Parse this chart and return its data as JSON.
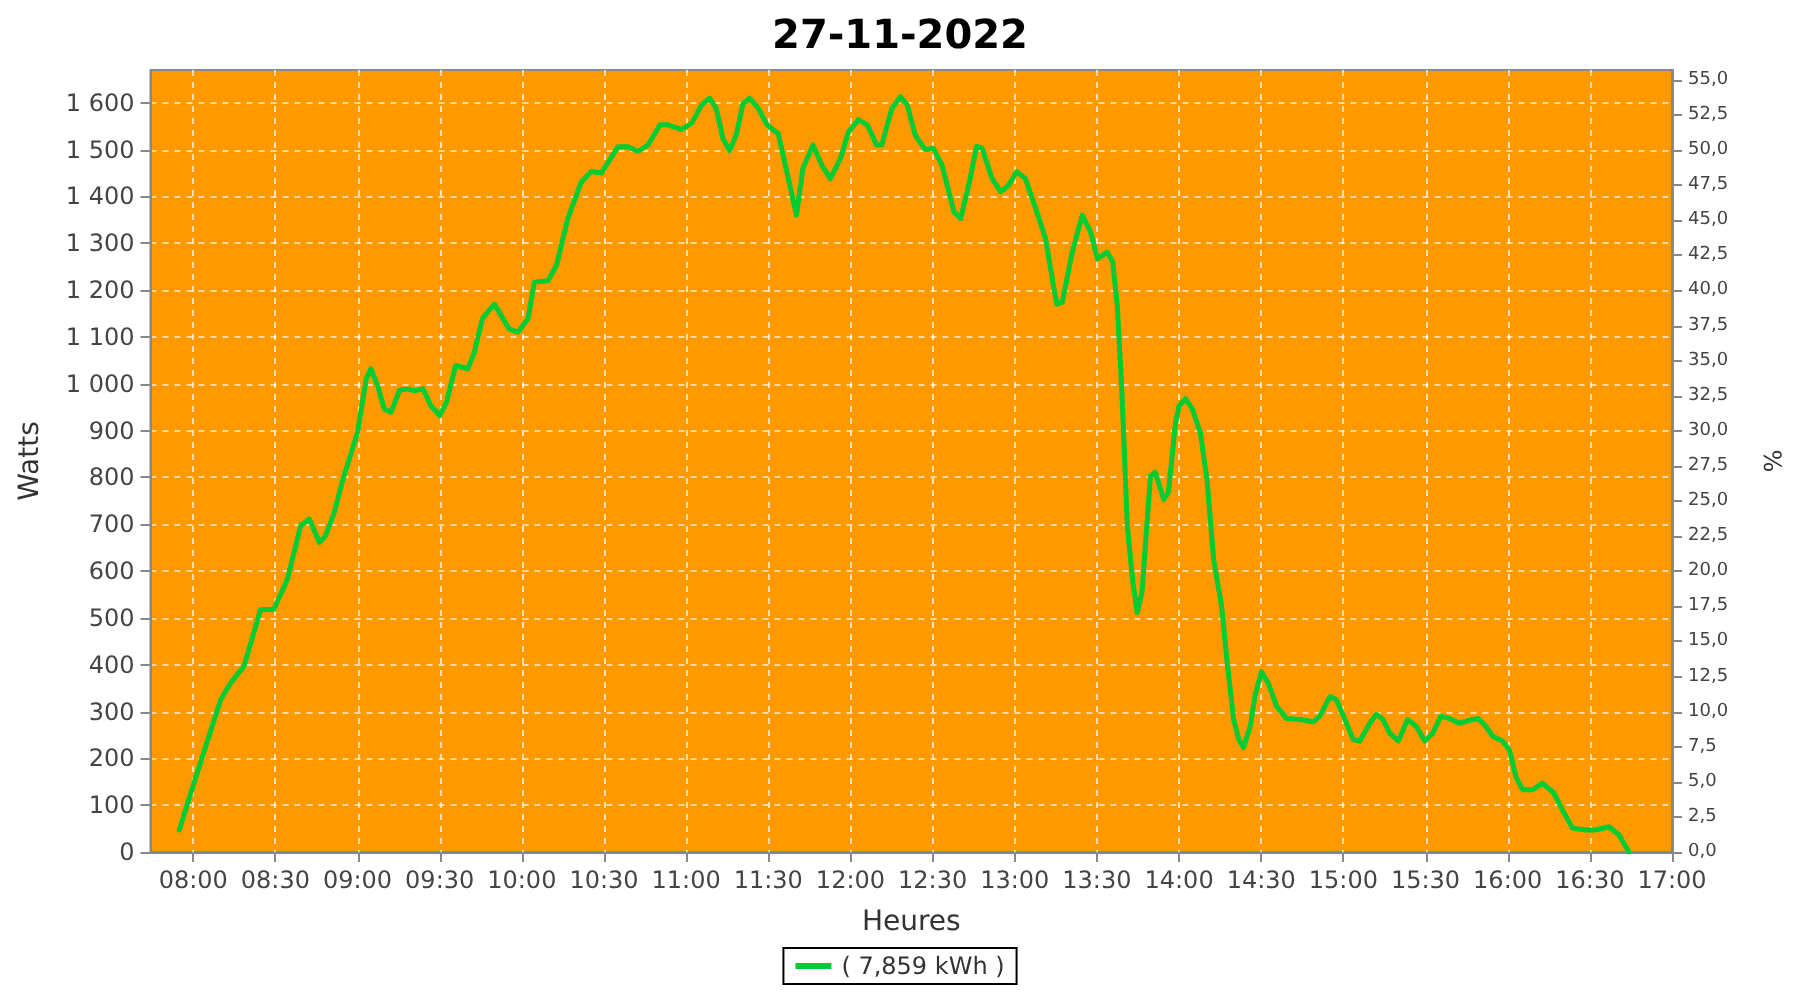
{
  "chart_data": {
    "type": "line",
    "title": "27-11-2022",
    "xlabel": "Heures",
    "ylabel": "Watts",
    "y2label": "%",
    "xlim": [
      7.74,
      17.0
    ],
    "xticks": [
      {
        "value": 8,
        "label": "08:00"
      },
      {
        "value": 8.5,
        "label": "08:30"
      },
      {
        "value": 9,
        "label": "09:00"
      },
      {
        "value": 9.5,
        "label": "09:30"
      },
      {
        "value": 10,
        "label": "10:00"
      },
      {
        "value": 10.5,
        "label": "10:30"
      },
      {
        "value": 11,
        "label": "11:00"
      },
      {
        "value": 11.5,
        "label": "11:30"
      },
      {
        "value": 12,
        "label": "12:00"
      },
      {
        "value": 12.5,
        "label": "12:30"
      },
      {
        "value": 13,
        "label": "13:00"
      },
      {
        "value": 13.5,
        "label": "13:30"
      },
      {
        "value": 14,
        "label": "14:00"
      },
      {
        "value": 14.5,
        "label": "14:30"
      },
      {
        "value": 15,
        "label": "15:00"
      },
      {
        "value": 15.5,
        "label": "15:30"
      },
      {
        "value": 16,
        "label": "16:00"
      },
      {
        "value": 16.5,
        "label": "16:30"
      },
      {
        "value": 17,
        "label": "17:00"
      }
    ],
    "ylim": [
      0,
      1670
    ],
    "yticks": [
      0,
      100,
      200,
      300,
      400,
      500,
      600,
      700,
      800,
      900,
      {
        "value": 1000,
        "label": "1 000"
      },
      {
        "value": 1100,
        "label": "1 100"
      },
      {
        "value": 1200,
        "label": "1 200"
      },
      {
        "value": 1300,
        "label": "1 300"
      },
      {
        "value": 1400,
        "label": "1 400"
      },
      {
        "value": 1500,
        "label": "1 500"
      },
      {
        "value": 1600,
        "label": "1 600"
      }
    ],
    "y2lim": [
      0,
      55.7
    ],
    "y2ticks": [
      {
        "value": 0,
        "label": "0,0"
      },
      {
        "value": 2.5,
        "label": "2,5"
      },
      {
        "value": 5,
        "label": "5,0"
      },
      {
        "value": 7.5,
        "label": "7,5"
      },
      {
        "value": 10,
        "label": "10,0"
      },
      {
        "value": 12.5,
        "label": "12,5"
      },
      {
        "value": 15,
        "label": "15,0"
      },
      {
        "value": 17.5,
        "label": "17,5"
      },
      {
        "value": 20,
        "label": "20,0"
      },
      {
        "value": 22.5,
        "label": "22,5"
      },
      {
        "value": 25,
        "label": "25,0"
      },
      {
        "value": 27.5,
        "label": "27,5"
      },
      {
        "value": 30,
        "label": "30,0"
      },
      {
        "value": 32.5,
        "label": "32,5"
      },
      {
        "value": 35,
        "label": "35,0"
      },
      {
        "value": 37.5,
        "label": "37,5"
      },
      {
        "value": 40,
        "label": "40,0"
      },
      {
        "value": 42.5,
        "label": "42,5"
      },
      {
        "value": 45,
        "label": "45,0"
      },
      {
        "value": 47.5,
        "label": "47,5"
      },
      {
        "value": 50,
        "label": "50,0"
      },
      {
        "value": 52.5,
        "label": "52,5"
      },
      {
        "value": 55,
        "label": "55,0"
      }
    ],
    "grid": true,
    "legend": "bottom",
    "marker": "none",
    "line_style": "solid",
    "series": [
      {
        "name": "( 7,859 kWh )",
        "color": "#00cc33",
        "x": [
          7.915,
          8.004,
          8.167,
          8.228,
          8.309,
          8.41,
          8.49,
          8.573,
          8.654,
          8.707,
          8.768,
          8.805,
          8.858,
          8.911,
          9.0,
          9.053,
          9.081,
          9.122,
          9.163,
          9.203,
          9.256,
          9.305,
          9.346,
          9.398,
          9.447,
          9.5,
          9.541,
          9.598,
          9.671,
          9.711,
          9.76,
          9.833,
          9.874,
          9.923,
          9.976,
          10.037,
          10.077,
          10.159,
          10.211,
          10.28,
          10.362,
          10.423,
          10.484,
          10.585,
          10.646,
          10.707,
          10.768,
          10.841,
          10.89,
          10.972,
          11.033,
          11.094,
          11.142,
          11.183,
          11.224,
          11.264,
          11.305,
          11.346,
          11.386,
          11.439,
          11.492,
          11.561,
          11.622,
          11.671,
          11.711,
          11.772,
          11.825,
          11.878,
          11.939,
          11.988,
          12.049,
          12.102,
          12.159,
          12.191,
          12.252,
          12.305,
          12.346,
          12.394,
          12.455,
          12.504,
          12.557,
          12.63,
          12.671,
          12.72,
          12.768,
          12.801,
          12.862,
          12.915,
          12.963,
          13.012,
          13.065,
          13.134,
          13.187,
          13.228,
          13.256,
          13.289,
          13.35,
          13.411,
          13.462,
          13.503,
          13.563,
          13.596,
          13.624,
          13.652,
          13.685,
          13.717,
          13.745,
          13.774,
          13.826,
          13.855,
          13.907,
          13.935,
          13.976,
          14.0,
          14.04,
          14.081,
          14.129,
          14.17,
          14.21,
          14.259,
          14.291,
          14.332,
          14.364,
          14.392,
          14.433,
          14.461,
          14.501,
          14.542,
          14.594,
          14.655,
          14.736,
          14.817,
          14.857,
          14.918,
          14.958,
          15.019,
          15.06,
          15.1,
          15.161,
          15.201,
          15.241,
          15.282,
          15.334,
          15.391,
          15.444,
          15.496,
          15.545,
          15.593,
          15.646,
          15.706,
          15.787,
          15.82,
          15.868,
          15.909,
          15.969,
          16.01,
          16.05,
          16.091,
          16.151,
          16.212,
          16.281,
          16.333,
          16.394,
          16.475,
          16.535,
          16.616,
          16.677,
          16.738
        ],
        "values": [
          47,
          147,
          325,
          361,
          397,
          518,
          518,
          582,
          697,
          711,
          661,
          675,
          725,
          796,
          896,
          1010,
          1032,
          996,
          946,
          939,
          986,
          989,
          985,
          989,
          953,
          932,
          960,
          1039,
          1032,
          1067,
          1139,
          1170,
          1146,
          1117,
          1110,
          1139,
          1217,
          1220,
          1253,
          1353,
          1431,
          1453,
          1450,
          1506,
          1506,
          1496,
          1510,
          1553,
          1553,
          1543,
          1556,
          1595,
          1610,
          1588,
          1524,
          1498,
          1531,
          1598,
          1610,
          1588,
          1553,
          1534,
          1438,
          1360,
          1460,
          1510,
          1467,
          1438,
          1481,
          1538,
          1564,
          1553,
          1510,
          1510,
          1588,
          1613,
          1595,
          1531,
          1500,
          1503,
          1467,
          1367,
          1353,
          1424,
          1507,
          1503,
          1438,
          1410,
          1424,
          1453,
          1438,
          1367,
          1310,
          1224,
          1170,
          1174,
          1281,
          1360,
          1324,
          1267,
          1281,
          1260,
          1167,
          982,
          696,
          582,
          511,
          554,
          803,
          811,
          753,
          768,
          910,
          953,
          968,
          946,
          896,
          796,
          625,
          525,
          411,
          283,
          240,
          223,
          268,
          332,
          385,
          361,
          311,
          285,
          283,
          278,
          290,
          332,
          325,
          275,
          240,
          237,
          275,
          294,
          283,
          254,
          237,
          283,
          268,
          237,
          254,
          290,
          285,
          275,
          283,
          285,
          268,
          247,
          237,
          218,
          161,
          133,
          133,
          147,
          126,
          90,
          51,
          47,
          47,
          54,
          37,
          0
        ]
      }
    ]
  }
}
